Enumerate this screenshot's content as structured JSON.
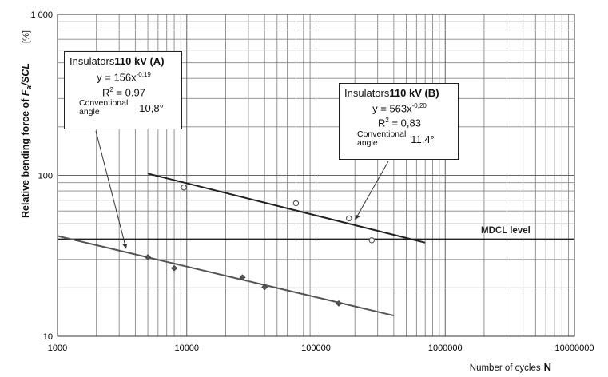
{
  "chart_data": {
    "type": "scatter",
    "x_scale": "log",
    "y_scale": "log",
    "xlim": [
      1000,
      10000000
    ],
    "ylim": [
      10,
      1000
    ],
    "x_ticks": [
      "1000",
      "10000",
      "100000",
      "1000000",
      "10000000"
    ],
    "y_ticks": [
      "10",
      "100",
      "1 000"
    ],
    "xlabel": "Number of cycles",
    "xlabel_symbol": "N",
    "ylabel_prefix": "Relative bending force of ",
    "ylabel_F": "F",
    "ylabel_sub": "a",
    "ylabel_suffix": "/SCL",
    "y_unit": "[%]",
    "grid": true,
    "series": [
      {
        "name": "Insulators 110 kV (A)",
        "marker": "diamond",
        "color": "#555555",
        "points": [
          [
            5000,
            31
          ],
          [
            8000,
            26.5
          ],
          [
            27000,
            23.2
          ],
          [
            40000,
            20.2
          ],
          [
            150000,
            16
          ]
        ],
        "fit_x": [
          1000,
          400000
        ],
        "fit_coeff": 156,
        "fit_exp": -0.19
      },
      {
        "name": "Insulators 110 kV (B)",
        "marker": "circle",
        "color": "#222222",
        "points": [
          [
            9500,
            84
          ],
          [
            70000,
            67
          ],
          [
            180000,
            54
          ],
          [
            270000,
            39.5
          ]
        ],
        "fit_x": [
          5000,
          700000
        ],
        "fit_coeff": 563,
        "fit_exp": -0.2
      }
    ],
    "reference_line": {
      "label": "MDCL   level",
      "y": 40
    }
  },
  "annotations": {
    "A": {
      "title": "Insulators",
      "title_bold": "110 kV (A)",
      "eq_prefix": "y = 156x",
      "eq_exp": "-0,19",
      "r2_prefix": "R",
      "r2_sup": "2",
      "r2_value": " = 0.97",
      "conv_line1": "Conventional",
      "conv_line2": "angle",
      "angle": "10,8°"
    },
    "B": {
      "title": "Insulators",
      "title_bold": "110 kV (B)",
      "eq_prefix": "y = 563x",
      "eq_exp": "-0,20",
      "r2_prefix": "R",
      "r2_sup": "2",
      "r2_value": " = 0,83",
      "conv_line1": "Conventional",
      "conv_line2": "angle",
      "angle": "11,4°"
    }
  }
}
